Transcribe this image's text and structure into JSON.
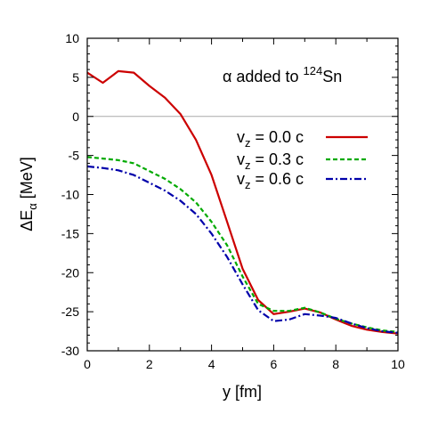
{
  "chart_data": {
    "type": "line",
    "xlabel": "y [fm]",
    "ylabel": "ΔEα [MeV]",
    "ylabel_parts": {
      "delta": "ΔE",
      "sub": "α",
      "unit": " [MeV]"
    },
    "xlim": [
      0,
      10
    ],
    "ylim": [
      -30,
      10
    ],
    "x_ticks": [
      0,
      2,
      4,
      6,
      8,
      10
    ],
    "y_ticks": [
      10,
      5,
      0,
      -5,
      -10,
      -15,
      -20,
      -25,
      -30
    ],
    "zero_line": true,
    "grid": false,
    "legend_position": "right-middle",
    "annotation": {
      "text": "α added to ¹²⁴Sn",
      "prefix": "α added to ",
      "superscript": "124",
      "element": "Sn"
    },
    "series": [
      {
        "name": "vz = 0.0 c",
        "label_main": "v",
        "label_sub": "z",
        "label_rest": " = 0.0 c",
        "color": "#cc0000",
        "style": "solid",
        "x": [
          0,
          0.5,
          1.0,
          1.5,
          2.0,
          2.5,
          3.0,
          3.5,
          4.0,
          4.5,
          5.0,
          5.5,
          6.0,
          6.5,
          7.0,
          7.5,
          8.0,
          8.5,
          9.0,
          9.5,
          10.0
        ],
        "values": [
          5.6,
          4.3,
          5.8,
          5.6,
          3.9,
          2.4,
          0.3,
          -3.0,
          -7.5,
          -13.5,
          -19.5,
          -23.5,
          -25.3,
          -25.0,
          -24.6,
          -25.1,
          -26.0,
          -26.8,
          -27.3,
          -27.6,
          -27.8
        ]
      },
      {
        "name": "vz = 0.3 c",
        "label_main": "v",
        "label_sub": "z",
        "label_rest": " = 0.3 c",
        "color": "#00aa00",
        "style": "dashed",
        "x": [
          0,
          0.5,
          1.0,
          1.5,
          2.0,
          2.5,
          3.0,
          3.5,
          4.0,
          4.5,
          5.0,
          5.5,
          6.0,
          6.5,
          7.0,
          7.5,
          8.0,
          8.5,
          9.0,
          9.5,
          10.0
        ],
        "values": [
          -5.2,
          -5.4,
          -5.6,
          -6.0,
          -7.0,
          -8.0,
          -9.3,
          -11.0,
          -13.5,
          -16.5,
          -20.5,
          -24.0,
          -24.9,
          -24.9,
          -24.5,
          -25.1,
          -25.9,
          -26.5,
          -27.0,
          -27.4,
          -27.6
        ]
      },
      {
        "name": "vz = 0.6 c",
        "label_main": "v",
        "label_sub": "z",
        "label_rest": " = 0.6 c",
        "color": "#0000aa",
        "style": "dashdot",
        "x": [
          0,
          0.5,
          1.0,
          1.5,
          2.0,
          2.5,
          3.0,
          3.5,
          4.0,
          4.5,
          5.0,
          5.5,
          6.0,
          6.5,
          7.0,
          7.5,
          8.0,
          8.5,
          9.0,
          9.5,
          10.0
        ],
        "values": [
          -6.4,
          -6.6,
          -6.9,
          -7.5,
          -8.5,
          -9.5,
          -10.8,
          -12.5,
          -15.0,
          -18.0,
          -21.5,
          -24.8,
          -26.2,
          -26.0,
          -25.3,
          -25.5,
          -25.8,
          -26.5,
          -27.1,
          -27.5,
          -27.7
        ]
      }
    ]
  }
}
